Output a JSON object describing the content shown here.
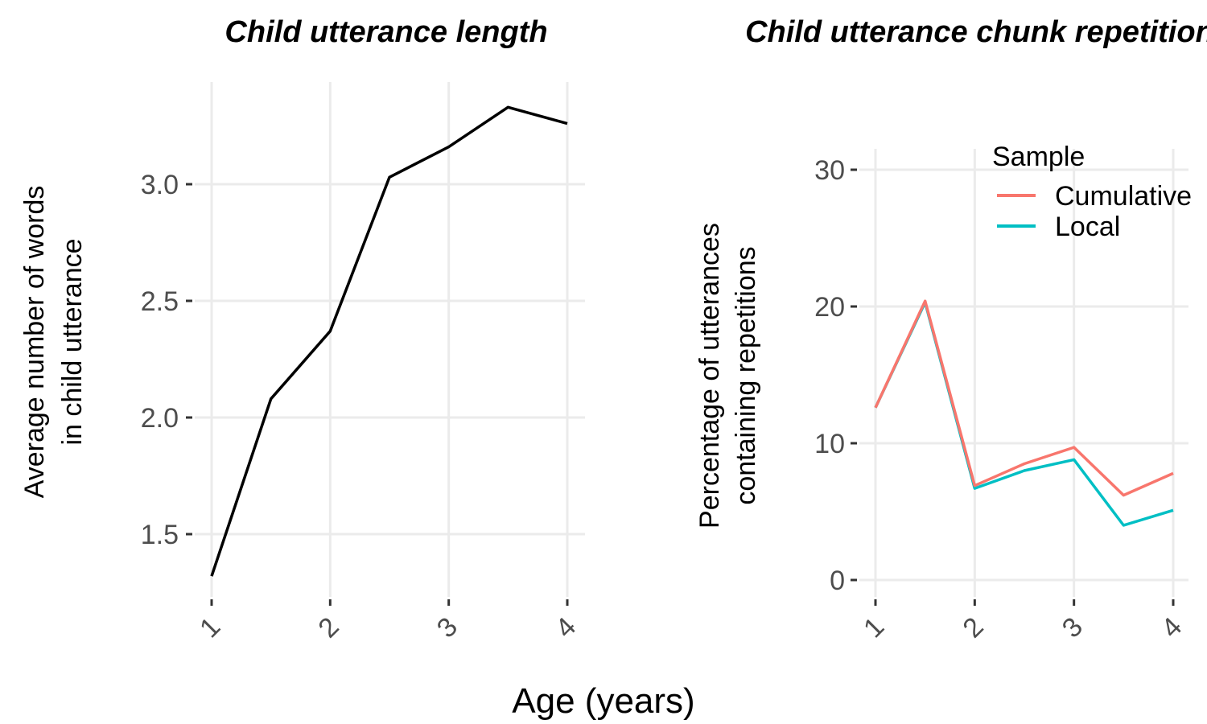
{
  "xlabel": "Age (years)",
  "chart_data": [
    {
      "type": "line",
      "title": "Child utterance length",
      "ylabel": [
        "Average number of words",
        "in child utterance"
      ],
      "xlabel": "Age (years)",
      "xlim": [
        1,
        4
      ],
      "ylim": [
        1.32,
        3.42
      ],
      "x_ticks": [
        1,
        2,
        3,
        4
      ],
      "y_ticks": [
        1.5,
        2.0,
        2.5,
        3.0
      ],
      "y_tick_labels": [
        "1.5",
        "2.0",
        "2.5",
        "3.0"
      ],
      "grid": true,
      "series": [
        {
          "color": "#000000",
          "x": [
            1,
            1.5,
            2,
            2.5,
            3,
            3.5,
            4
          ],
          "y": [
            1.32,
            2.08,
            2.37,
            3.03,
            3.16,
            3.33,
            3.26
          ]
        }
      ]
    },
    {
      "type": "line",
      "title": "Child utterance chunk repetitions",
      "ylabel": [
        "Percentage of utterances",
        "containing repetitions"
      ],
      "xlabel": "Age (years)",
      "xlim": [
        1,
        4
      ],
      "ylim": [
        0,
        31
      ],
      "x_ticks": [
        1,
        2,
        3,
        4
      ],
      "y_ticks": [
        0,
        10,
        20,
        30
      ],
      "y_tick_labels": [
        "0",
        "10",
        "20",
        "30"
      ],
      "grid": true,
      "legend": {
        "title": "Sample",
        "placement": "top-right"
      },
      "series": [
        {
          "name": "Cumulative",
          "color": "#F8766D",
          "x": [
            1,
            1.5,
            2,
            2.5,
            3,
            3.5,
            4
          ],
          "y": [
            12.6,
            20.4,
            6.9,
            8.5,
            9.7,
            6.2,
            7.8
          ]
        },
        {
          "name": "Local",
          "color": "#00BFC4",
          "x": [
            1,
            1.5,
            2,
            2.5,
            3,
            3.5,
            4
          ],
          "y": [
            12.6,
            20.3,
            6.7,
            8.0,
            8.8,
            4.0,
            5.1
          ]
        }
      ]
    }
  ]
}
